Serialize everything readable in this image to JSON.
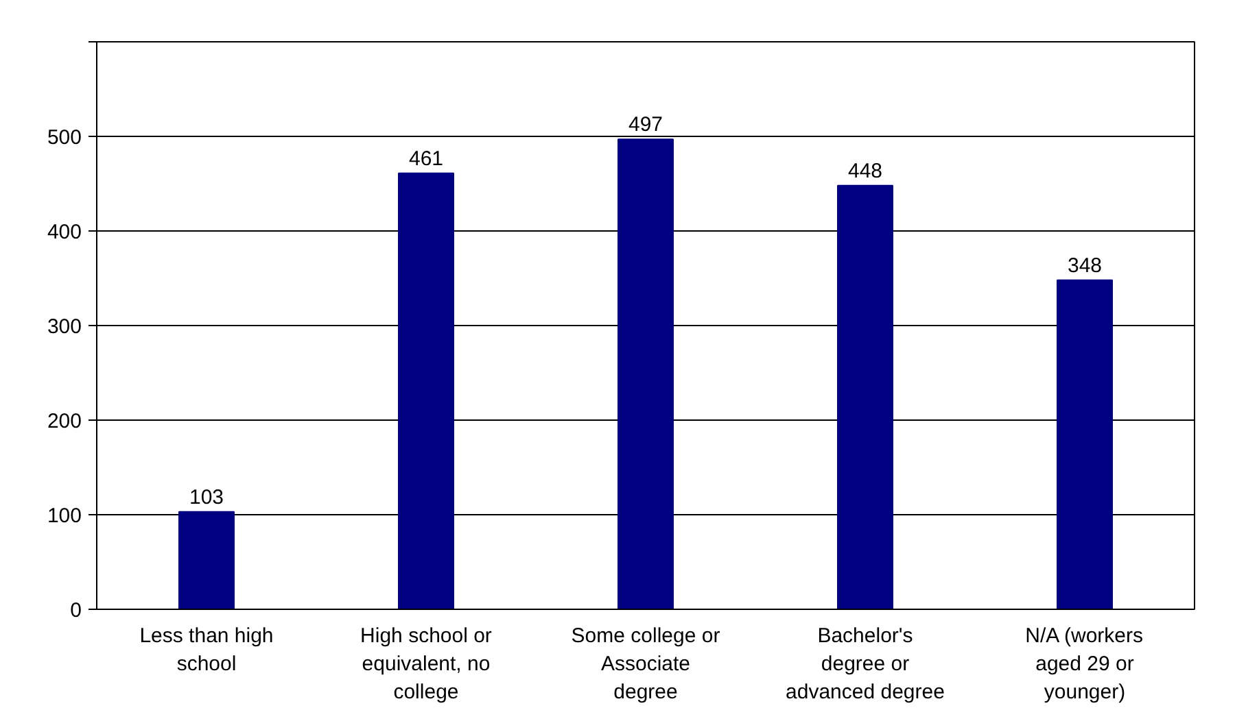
{
  "chart_data": {
    "type": "bar",
    "categories": [
      "Less than high school",
      "High school or equivalent, no college",
      "Some college or Associate degree",
      "Bachelor's degree or advanced degree",
      "N/A (workers aged 29 or younger)"
    ],
    "values": [
      103,
      461,
      497,
      448,
      348
    ],
    "color": "#000080",
    "ylim": [
      0,
      600
    ],
    "yticks": [
      0,
      100,
      200,
      300,
      400,
      500,
      {
        "value": 600,
        "label": null
      }
    ],
    "grid": "y",
    "data_labels": true
  }
}
